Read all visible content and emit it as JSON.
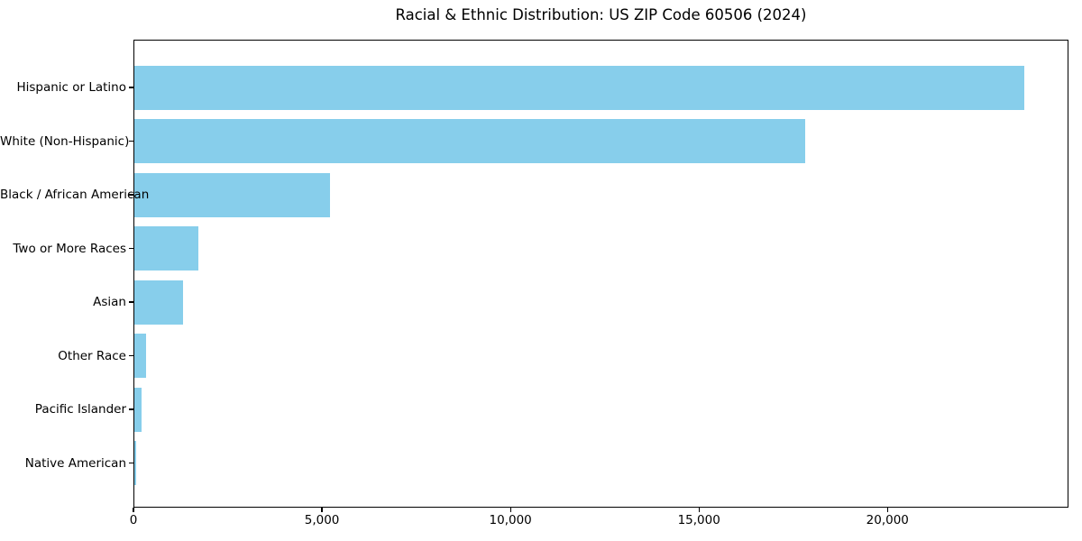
{
  "title": "Racial & Ethnic Distribution: US ZIP Code 60506 (2024)",
  "chart_data": {
    "type": "bar",
    "orientation": "horizontal",
    "title": "Racial & Ethnic Distribution: US ZIP Code 60506 (2024)",
    "categories": [
      "Hispanic or Latino",
      "White (Non-Hispanic)",
      "Black / African American",
      "Two or More Races",
      "Asian",
      "Other Race",
      "Pacific Islander",
      "Native American"
    ],
    "values": [
      23600,
      17800,
      5200,
      1700,
      1300,
      310,
      190,
      40
    ],
    "xlabel": "",
    "ylabel": "",
    "xlim": [
      0,
      24800
    ],
    "x_ticks": [
      0,
      5000,
      10000,
      15000,
      20000
    ],
    "x_tick_labels": [
      "0",
      "5,000",
      "10,000",
      "15,000",
      "20,000"
    ],
    "grid": false,
    "legend": "none",
    "bar_color": "#87CEEB",
    "axis_color": "#000000",
    "text_color": "#000000",
    "background_color": "#FFFFFF"
  }
}
